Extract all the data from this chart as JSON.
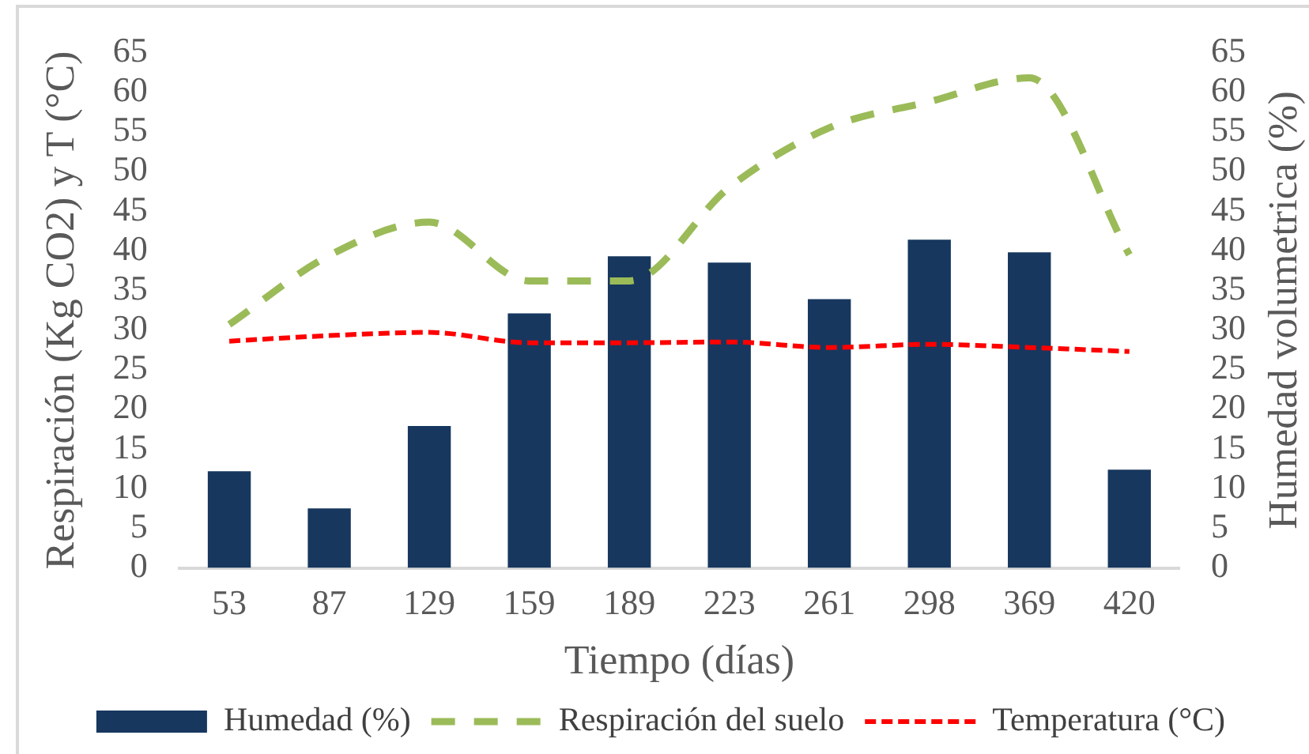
{
  "chart_data": {
    "type": "bar",
    "xlabel": "Tiempo (días)",
    "ylabel": "Respiración (Kg CO2) y T (°C)",
    "y2label": "Humedad volumetrica (%)",
    "categories": [
      "53",
      "87",
      "129",
      "159",
      "189",
      "223",
      "261",
      "298",
      "369",
      "420"
    ],
    "series": [
      {
        "name": "Humedad (%)",
        "axis": "y2",
        "color": "#17375e",
        "values": [
          12.2,
          7.5,
          17.9,
          32.1,
          39.3,
          38.5,
          33.9,
          41.4,
          39.8,
          12.4
        ]
      },
      {
        "name": "Respiración del suelo",
        "type": "line",
        "color": "#9bbb59",
        "values": [
          30.7,
          39.4,
          43.6,
          36.2,
          36.2,
          48,
          55.5,
          58.8,
          61.8,
          39.5
        ]
      },
      {
        "name": "Temperatura (°C)",
        "type": "line",
        "color": "#ff0000",
        "values": [
          28.6,
          29.3,
          29.7,
          28.4,
          28.4,
          28.5,
          27.8,
          28.2,
          27.8,
          27.3
        ]
      }
    ],
    "ylim": [
      0,
      65
    ],
    "yticks": [
      0,
      5,
      10,
      15,
      20,
      25,
      30,
      35,
      40,
      45,
      50,
      55,
      60,
      65
    ],
    "y2lim": [
      0,
      65
    ],
    "y2ticks": [
      0,
      5,
      10,
      15,
      20,
      25,
      30,
      35,
      40,
      45,
      50,
      55,
      60,
      65
    ],
    "grid": false,
    "legend": "bottom",
    "marker": "none",
    "line_style": "dashed"
  }
}
